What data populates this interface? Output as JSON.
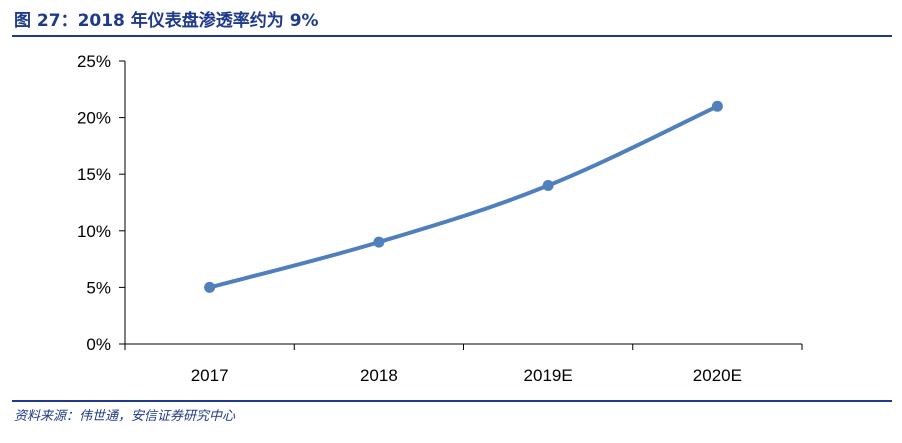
{
  "header": {
    "title": "图 27：2018 年仪表盘渗透率约为 9%"
  },
  "footer": {
    "source": "资料来源：伟世通，安信证券研究中心"
  },
  "colors": {
    "accent": "#1f3a8a",
    "series_line": "#4f7fbd"
  },
  "chart_data": {
    "type": "line",
    "title": "",
    "xlabel": "",
    "ylabel": "",
    "categories": [
      "2017",
      "2018",
      "2019E",
      "2020E"
    ],
    "series": [
      {
        "values": [
          5,
          9,
          14,
          21
        ]
      }
    ],
    "ylim": [
      0,
      25
    ],
    "yticks": [
      0,
      5,
      10,
      15,
      20,
      25
    ],
    "ytick_labels": [
      "0%",
      "5%",
      "10%",
      "15%",
      "20%",
      "25%"
    ],
    "grid": false,
    "legend": "none"
  }
}
